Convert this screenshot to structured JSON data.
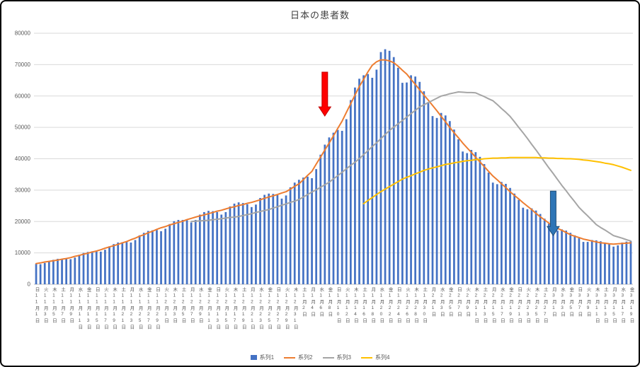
{
  "window": {
    "background": "#FFFFFF",
    "border_color": "#000000"
  },
  "chart_data": {
    "type": "bar",
    "title": "日本の患者数",
    "ylim": [
      0,
      80000
    ],
    "y_tick_step": 10000,
    "grid": true,
    "legend_position": "bottom",
    "axis_label_color": "#595959",
    "gridline_color": "#D9D9D9",
    "x_frequency": "daily, tick labels every 2 days",
    "x_tick_labels": [
      [
        "日",
        "11月1日"
      ],
      [
        "火",
        "11月3日"
      ],
      [
        "木",
        "11月5日"
      ],
      [
        "土",
        "11月7日"
      ],
      [
        "月",
        "11月9日"
      ],
      [
        "水",
        "11月11日"
      ],
      [
        "金",
        "11月13日"
      ],
      [
        "日",
        "11月15日"
      ],
      [
        "火",
        "11月17日"
      ],
      [
        "木",
        "11月19日"
      ],
      [
        "土",
        "11月21日"
      ],
      [
        "月",
        "11月23日"
      ],
      [
        "水",
        "11月25日"
      ],
      [
        "金",
        "11月27日"
      ],
      [
        "日",
        "11月29日"
      ],
      [
        "火",
        "12月1日"
      ],
      [
        "木",
        "12月3日"
      ],
      [
        "土",
        "12月5日"
      ],
      [
        "月",
        "12月7日"
      ],
      [
        "水",
        "12月9日"
      ],
      [
        "金",
        "12月11日"
      ],
      [
        "日",
        "12月13日"
      ],
      [
        "火",
        "12月15日"
      ],
      [
        "木",
        "12月17日"
      ],
      [
        "土",
        "12月19日"
      ],
      [
        "月",
        "12月21日"
      ],
      [
        "水",
        "12月23日"
      ],
      [
        "金",
        "12月25日"
      ],
      [
        "日",
        "12月27日"
      ],
      [
        "火",
        "12月29日"
      ],
      [
        "木",
        "12月31日"
      ],
      [
        "土",
        "1月2日"
      ],
      [
        "月",
        "1月4日"
      ],
      [
        "水",
        "1月6日"
      ],
      [
        "金",
        "1月8日"
      ],
      [
        "日",
        "1月10日"
      ],
      [
        "火",
        "1月12日"
      ],
      [
        "木",
        "1月14日"
      ],
      [
        "土",
        "1月16日"
      ],
      [
        "月",
        "1月18日"
      ],
      [
        "水",
        "1月20日"
      ],
      [
        "金",
        "1月22日"
      ],
      [
        "日",
        "1月24日"
      ],
      [
        "火",
        "1月26日"
      ],
      [
        "木",
        "1月28日"
      ],
      [
        "土",
        "1月30日"
      ],
      [
        "月",
        "2月1日"
      ],
      [
        "水",
        "2月3日"
      ],
      [
        "金",
        "2月5日"
      ],
      [
        "日",
        "2月7日"
      ],
      [
        "火",
        "2月9日"
      ],
      [
        "木",
        "2月11日"
      ],
      [
        "土",
        "2月13日"
      ],
      [
        "月",
        "2月15日"
      ],
      [
        "水",
        "2月17日"
      ],
      [
        "金",
        "2月19日"
      ],
      [
        "日",
        "2月21日"
      ],
      [
        "火",
        "2月23日"
      ],
      [
        "木",
        "2月25日"
      ],
      [
        "土",
        "2月27日"
      ],
      [
        "月",
        "3月1日"
      ],
      [
        "水",
        "3月3日"
      ],
      [
        "金",
        "3月5日"
      ],
      [
        "日",
        "3月7日"
      ],
      [
        "火",
        "3月9日"
      ],
      [
        "木",
        "3月11日"
      ],
      [
        "土",
        "3月13日"
      ],
      [
        "月",
        "3月15日"
      ],
      [
        "水",
        "3月17日"
      ],
      [
        "金",
        "3月19日"
      ]
    ],
    "series": [
      {
        "name": "系列1",
        "type": "bar",
        "color": "#4472C4",
        "start": 0,
        "values": [
          6500,
          6400,
          6800,
          7400,
          7800,
          8100,
          8100,
          8100,
          8000,
          8500,
          9400,
          10000,
          10300,
          10500,
          10500,
          10400,
          11000,
          12100,
          12800,
          13300,
          13400,
          13500,
          13300,
          14100,
          15600,
          16400,
          17000,
          17200,
          17300,
          16900,
          17700,
          19200,
          20100,
          20500,
          20500,
          20400,
          19700,
          20500,
          22200,
          23000,
          23400,
          23300,
          23000,
          22200,
          23000,
          24800,
          25700,
          26100,
          25900,
          25500,
          24600,
          25400,
          27500,
          28500,
          28900,
          28800,
          28400,
          27300,
          28300,
          30900,
          32400,
          33300,
          34000,
          34300,
          33800,
          36700,
          41300,
          44500,
          46800,
          48300,
          49200,
          48900,
          52600,
          58700,
          62700,
          65500,
          66600,
          67000,
          65800,
          68400,
          74000,
          74900,
          74400,
          72400,
          69000,
          64200,
          64300,
          66600,
          66200,
          64500,
          61500,
          58100,
          53600,
          53000,
          54600,
          53800,
          52000,
          49300,
          46200,
          42300,
          41800,
          42800,
          42100,
          40600,
          38300,
          35600,
          32400,
          31900,
          32600,
          32000,
          30700,
          28900,
          26900,
          24400,
          23900,
          24200,
          23500,
          22400,
          20900,
          19300,
          17400,
          17100,
          17500,
          17100,
          16400,
          15600,
          14700,
          13500,
          13500,
          14100,
          14000,
          13700,
          13300,
          12800,
          12000,
          12400,
          13300,
          13600,
          13700
        ]
      },
      {
        "name": "系列2",
        "type": "line",
        "color": "#ED7D31",
        "start": 0,
        "values": [
          6600,
          6800,
          7100,
          7300,
          7500,
          7700,
          8000,
          8200,
          8500,
          8900,
          9200,
          9600,
          9900,
          10300,
          10600,
          11000,
          11500,
          11900,
          12300,
          12700,
          13200,
          13600,
          14200,
          14700,
          15300,
          15800,
          16400,
          16900,
          17500,
          18000,
          18400,
          18900,
          19300,
          19700,
          20100,
          20600,
          21000,
          21400,
          21800,
          22100,
          22500,
          22900,
          23300,
          23600,
          24000,
          24400,
          24700,
          25100,
          25400,
          25800,
          26100,
          26500,
          26900,
          27400,
          27800,
          28200,
          28600,
          29100,
          29500,
          30300,
          31200,
          32000,
          33300,
          34700,
          36000,
          38300,
          40500,
          42800,
          45000,
          47300,
          49700,
          52000,
          54800,
          57500,
          60300,
          63000,
          65300,
          67700,
          69800,
          70900,
          71500,
          71500,
          71200,
          70600,
          69500,
          68200,
          67000,
          65300,
          63700,
          62000,
          60300,
          58700,
          57000,
          55300,
          53500,
          51800,
          50000,
          48300,
          46700,
          45000,
          43500,
          42000,
          40500,
          39000,
          37500,
          36000,
          34500,
          33300,
          32000,
          30800,
          29500,
          28300,
          27200,
          26000,
          24900,
          23800,
          22600,
          21500,
          20500,
          19500,
          18500,
          17800,
          17200,
          16500,
          15800,
          15300,
          14900,
          14400,
          14100,
          13800,
          13500,
          13200,
          13100,
          12900,
          12800,
          12900,
          13000,
          13100,
          13200
        ]
      },
      {
        "name": "系列3",
        "type": "line",
        "color": "#A5A5A5",
        "start": 36,
        "values": [
          20000,
          20100,
          20200,
          20300,
          20400,
          20600,
          20700,
          20900,
          21100,
          21300,
          21400,
          21600,
          21900,
          22200,
          22500,
          22900,
          23200,
          23500,
          23800,
          24300,
          24700,
          25200,
          25600,
          26100,
          26500,
          27000,
          27800,
          28600,
          29400,
          30100,
          30900,
          31700,
          32500,
          33600,
          34600,
          35700,
          36800,
          37900,
          38900,
          40000,
          41300,
          42600,
          43900,
          45100,
          46400,
          47700,
          49000,
          50100,
          51100,
          52200,
          53300,
          54400,
          55400,
          56500,
          57200,
          57900,
          58600,
          59300,
          60000,
          60300,
          60700,
          61000,
          61300,
          61200,
          61100,
          61100,
          61000,
          60400,
          59800,
          59100,
          58500,
          57300,
          56000,
          54800,
          53500,
          51800,
          50000,
          48300,
          46500,
          44600,
          42800,
          40900,
          39000,
          37100,
          35300,
          33400,
          31500,
          29800,
          28000,
          26300,
          24500,
          23100,
          21800,
          20400,
          19000,
          18100,
          17300,
          16400,
          15500,
          15100,
          14700,
          14200,
          13800
        ]
      },
      {
        "name": "系列4",
        "type": "line",
        "color": "#FFC000",
        "start": 76,
        "values": [
          25700,
          26700,
          27600,
          28600,
          29500,
          30300,
          31100,
          31900,
          32700,
          33500,
          34100,
          34600,
          35200,
          35700,
          36300,
          36700,
          37100,
          37400,
          37800,
          38200,
          38400,
          38700,
          38900,
          39200,
          39400,
          39500,
          39700,
          39800,
          40000,
          40100,
          40200,
          40200,
          40300,
          40300,
          40400,
          40400,
          40400,
          40400,
          40400,
          40400,
          40400,
          40300,
          40300,
          40200,
          40200,
          40100,
          40100,
          40000,
          40000,
          39900,
          39800,
          39600,
          39500,
          39300,
          39100,
          38900,
          38600,
          38400,
          38100,
          37700,
          37300,
          36800,
          36300
        ]
      }
    ],
    "annotations": [
      {
        "name": "red-down-arrow",
        "shape": "arrow-down",
        "color": "#FF0000",
        "border": "#C00000",
        "x_index": 67,
        "value_top": 67600,
        "value_tip": 53600
      },
      {
        "name": "blue-down-arrow",
        "shape": "arrow-down",
        "color": "#2E75B6",
        "border": "#1F4E79",
        "x_index": 120,
        "value_top": 29700,
        "value_tip": 15500
      }
    ]
  }
}
